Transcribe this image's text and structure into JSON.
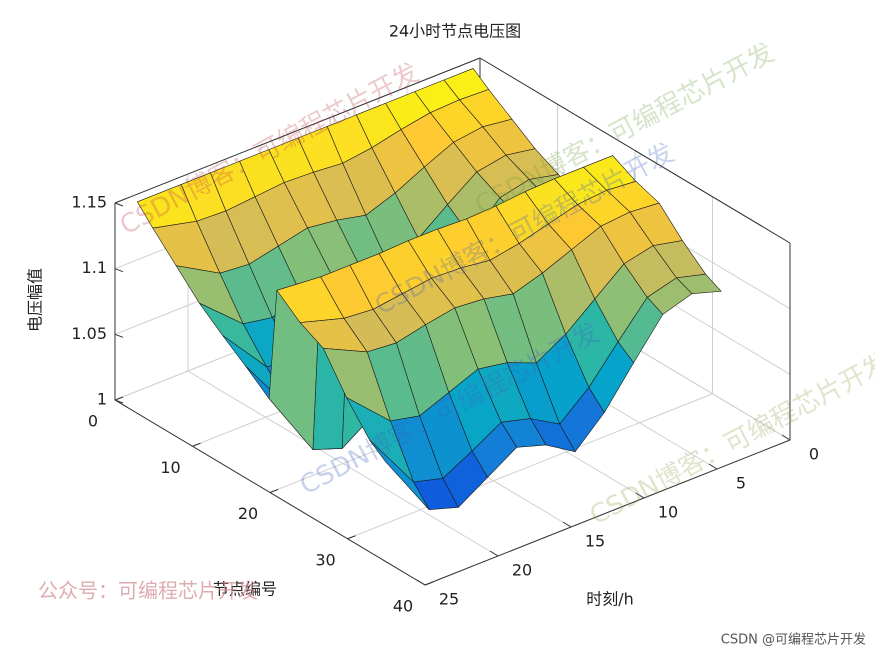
{
  "chart_data": {
    "type": "surface",
    "title": "24小时节点电压图",
    "xlabel": "节点编号",
    "ylabel": "时刻/h",
    "zlabel": "电压幅值",
    "nodes": [
      1,
      3,
      6,
      9,
      12,
      15,
      18,
      19,
      22,
      25,
      28,
      31,
      33
    ],
    "hours": [
      1,
      3,
      5,
      7,
      9,
      11,
      13,
      15,
      17,
      19,
      21,
      24
    ],
    "z": [
      [
        1.15,
        1.141,
        1.129,
        1.117,
        1.108,
        1.099,
        1.09,
        1.147,
        1.138,
        1.132,
        1.114,
        1.099,
        1.093
      ],
      [
        1.15,
        1.142,
        1.132,
        1.121,
        1.113,
        1.105,
        1.098,
        1.147,
        1.14,
        1.134,
        1.119,
        1.105,
        1.1
      ],
      [
        1.15,
        1.141,
        1.129,
        1.117,
        1.108,
        1.099,
        1.09,
        1.147,
        1.138,
        1.132,
        1.114,
        1.099,
        1.093
      ],
      [
        1.15,
        1.137,
        1.119,
        1.101,
        1.087,
        1.074,
        1.06,
        1.146,
        1.132,
        1.123,
        1.096,
        1.074,
        1.065
      ],
      [
        1.15,
        1.132,
        1.108,
        1.084,
        1.066,
        1.048,
        1.03,
        1.144,
        1.126,
        1.114,
        1.078,
        1.048,
        1.036
      ],
      [
        1.15,
        1.129,
        1.1,
        1.072,
        1.05,
        1.029,
        1.008,
        1.143,
        1.122,
        1.107,
        1.065,
        1.029,
        1.015
      ],
      [
        1.15,
        1.131,
        1.105,
        1.08,
        1.061,
        1.042,
        1.023,
        1.144,
        1.125,
        1.112,
        1.074,
        1.042,
        1.029
      ],
      [
        1.15,
        1.132,
        1.108,
        1.084,
        1.066,
        1.048,
        1.03,
        1.144,
        1.126,
        1.114,
        1.078,
        1.048,
        1.036
      ],
      [
        1.15,
        1.13,
        1.103,
        1.076,
        1.056,
        1.035,
        1.015,
        1.143,
        1.123,
        1.11,
        1.069,
        1.035,
        1.022
      ],
      [
        1.15,
        1.128,
        1.098,
        1.068,
        1.045,
        1.023,
        1.0,
        1.143,
        1.12,
        1.105,
        1.06,
        1.023,
        1.008
      ],
      [
        1.15,
        1.129,
        1.1,
        1.072,
        1.05,
        1.029,
        1.008,
        1.143,
        1.122,
        1.107,
        1.065,
        1.029,
        1.015
      ],
      [
        1.15,
        1.137,
        1.119,
        1.101,
        1.087,
        1.074,
        1.06,
        1.146,
        1.132,
        1.123,
        1.096,
        1.074,
        1.065
      ]
    ],
    "xlim": [
      0,
      40
    ],
    "xticks": [
      0,
      10,
      20,
      30,
      40
    ],
    "ylim": [
      0,
      25
    ],
    "yticks": [
      0,
      5,
      10,
      15,
      20,
      25
    ],
    "zlim": [
      1,
      1.15
    ],
    "zticks": [
      1,
      1.05,
      1.1,
      1.15
    ],
    "grid": true,
    "colormap": [
      "#352a87",
      "#0f5cdd",
      "#1481d6",
      "#06a4ca",
      "#2eb7a4",
      "#87bf77",
      "#d1bb59",
      "#fec832",
      "#f9fb0e"
    ],
    "watermarks": [
      "CSDN博客：可编程芯片开发",
      "CSDN博客：可编程芯片开发",
      "CSDN博客：可编程芯片开发",
      "CSDN博客：可编程芯片开发",
      "CSDN博客：可编程芯片开发"
    ],
    "footer_left": "公众号：可编程芯片开发",
    "footer_right": "CSDN @可编程芯片开发"
  }
}
